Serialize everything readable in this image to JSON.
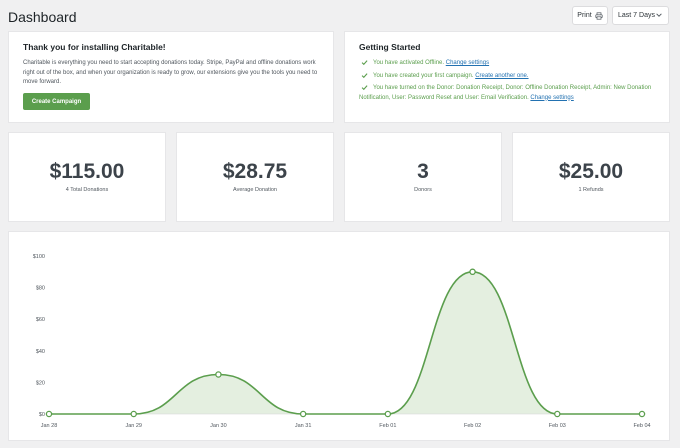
{
  "header": {
    "title": "Dashboard",
    "print_label": "Print",
    "range_value": "Last 7 Days"
  },
  "welcome": {
    "title": "Thank you for installing Charitable!",
    "text": "Charitable is everything you need to start accepting donations today. Stripe, PayPal and offline donations work right out of the box, and when your organization is ready to grow, our extensions give you the tools you need to move forward.",
    "button_label": "Create Campaign"
  },
  "getting_started": {
    "title": "Getting Started",
    "items": [
      {
        "text": "You have activated Offline.",
        "link": "Change settings"
      },
      {
        "text": "You have created your first campaign.",
        "link": "Create another one."
      },
      {
        "text": "You have turned on the Donor: Donation Receipt, Donor: Offline Donation Receipt, Admin: New Donation Notification, User: Password Reset and User: Email Verification.",
        "link": "Change settings"
      }
    ]
  },
  "stats": [
    {
      "value": "$115.00",
      "label": "4 Total Donations"
    },
    {
      "value": "$28.75",
      "label": "Average Donation"
    },
    {
      "value": "3",
      "label": "Donors"
    },
    {
      "value": "$25.00",
      "label": "1 Refunds"
    }
  ],
  "chart_data": {
    "type": "area",
    "categories": [
      "Jan 28",
      "Jan 29",
      "Jan 30",
      "Jan 31",
      "Feb 01",
      "Feb 02",
      "Feb 03",
      "Feb 04"
    ],
    "values": [
      0,
      0,
      25,
      0,
      0,
      90,
      0,
      0
    ],
    "y_ticks": [
      "$0",
      "$20",
      "$40",
      "$60",
      "$80",
      "$100"
    ],
    "ylim": [
      0,
      100
    ],
    "grid": false,
    "line_color": "#5b9e4d",
    "fill_color": "#e4efe0"
  },
  "colors": {
    "accent": "#5b9e4d",
    "link": "#2271b1"
  }
}
